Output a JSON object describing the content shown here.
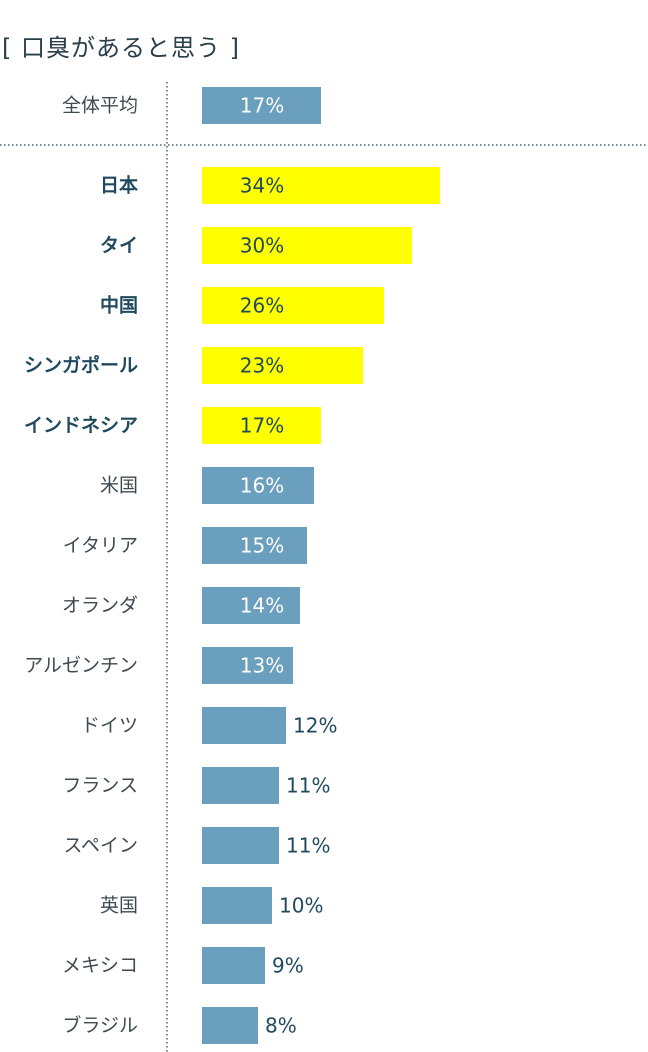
{
  "chart_data": {
    "type": "bar",
    "orientation": "horizontal",
    "title": "[ 口臭があると思う ]",
    "average": {
      "category": "全体平均",
      "value": 17,
      "label": "17%"
    },
    "categories": [
      "日本",
      "タイ",
      "中国",
      "シンガポール",
      "インドネシア",
      "米国",
      "イタリア",
      "オランダ",
      "アルゼンチン",
      "ドイツ",
      "フランス",
      "スペイン",
      "英国",
      "メキシコ",
      "ブラジル"
    ],
    "values": [
      34,
      30,
      26,
      23,
      17,
      16,
      15,
      14,
      13,
      12,
      11,
      11,
      10,
      9,
      8
    ],
    "labels": [
      "34%",
      "30%",
      "26%",
      "23%",
      "17%",
      "16%",
      "15%",
      "14%",
      "13%",
      "12%",
      "11%",
      "11%",
      "10%",
      "9%",
      "8%"
    ],
    "highlighted": [
      true,
      true,
      true,
      true,
      true,
      false,
      false,
      false,
      false,
      false,
      false,
      false,
      false,
      false,
      false
    ],
    "xlim": [
      0,
      34
    ],
    "grid": false,
    "legend": "none",
    "colors": {
      "default_bar": "#6a9fbe",
      "highlight_bar": "#ffff00",
      "label_inside_default": "#ffffff",
      "label_inside_highlight": "#1f4a5e",
      "label_outside": "#1f4a5e",
      "category_bold": "#1f4a5e",
      "category_normal": "#3f4a50",
      "divider": "#4a6470"
    }
  }
}
